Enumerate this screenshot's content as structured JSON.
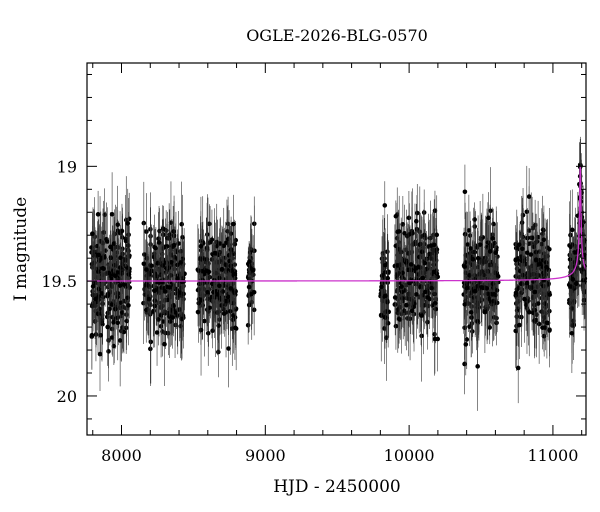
{
  "chart_data": {
    "type": "scatter",
    "title": "OGLE-2026-BLG-0570",
    "xlabel": "HJD - 2450000",
    "ylabel": "I magnitude",
    "xlim": [
      7760,
      11230
    ],
    "ylim": [
      20.17,
      18.55
    ],
    "y_inverted": true,
    "xticks": [
      8000,
      9000,
      10000,
      11000
    ],
    "yticks": [
      19,
      19.5,
      20
    ],
    "grid": false,
    "legend": "none",
    "point_color": "#000000",
    "errorbar_color": "#333333",
    "model_color": "#cc33cc",
    "baseline_mag": 19.5,
    "seasons": [
      {
        "start": 7790,
        "end": 8060,
        "mean": 19.5,
        "spread": 0.2,
        "n": 240
      },
      {
        "start": 8150,
        "end": 8440,
        "mean": 19.49,
        "spread": 0.19,
        "n": 230
      },
      {
        "start": 8530,
        "end": 8800,
        "mean": 19.49,
        "spread": 0.19,
        "n": 230
      },
      {
        "start": 8880,
        "end": 8925,
        "mean": 19.5,
        "spread": 0.15,
        "n": 35
      },
      {
        "start": 9800,
        "end": 9860,
        "mean": 19.5,
        "spread": 0.2,
        "n": 50
      },
      {
        "start": 9900,
        "end": 10200,
        "mean": 19.48,
        "spread": 0.19,
        "n": 230
      },
      {
        "start": 10380,
        "end": 10620,
        "mean": 19.49,
        "spread": 0.19,
        "n": 210
      },
      {
        "start": 10740,
        "end": 10980,
        "mean": 19.49,
        "spread": 0.19,
        "n": 210
      },
      {
        "start": 11110,
        "end": 11225,
        "mean": 19.5,
        "spread": 0.19,
        "n": 120
      }
    ],
    "event": {
      "t0": 11190,
      "peak_mag": 19.0,
      "width_days": 8
    }
  }
}
